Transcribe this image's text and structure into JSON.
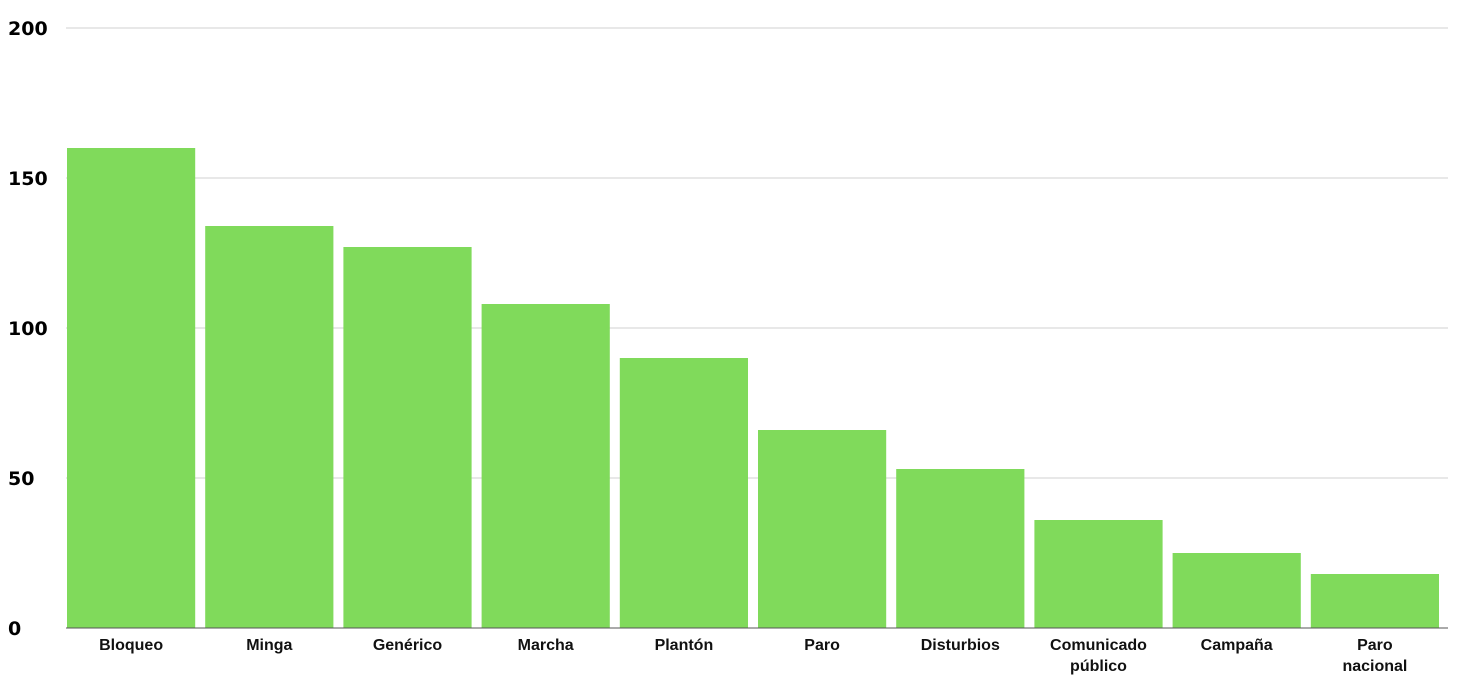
{
  "chart_data": {
    "type": "bar",
    "title": "",
    "xlabel": "",
    "ylabel": "",
    "categories": [
      "Bloqueo",
      "Minga",
      "Genérico",
      "Marcha",
      "Plantón",
      "Paro",
      "Disturbios",
      "Comunicado público",
      "Campaña",
      "Paro nacional"
    ],
    "values": [
      160,
      134,
      127,
      108,
      90,
      66,
      53,
      36,
      25,
      18
    ],
    "ylim": [
      0,
      200
    ],
    "yticks": [
      "0",
      "50",
      "100",
      "150",
      "200"
    ],
    "bar_color": "#80DA5B",
    "grid": true,
    "legend": "none"
  }
}
